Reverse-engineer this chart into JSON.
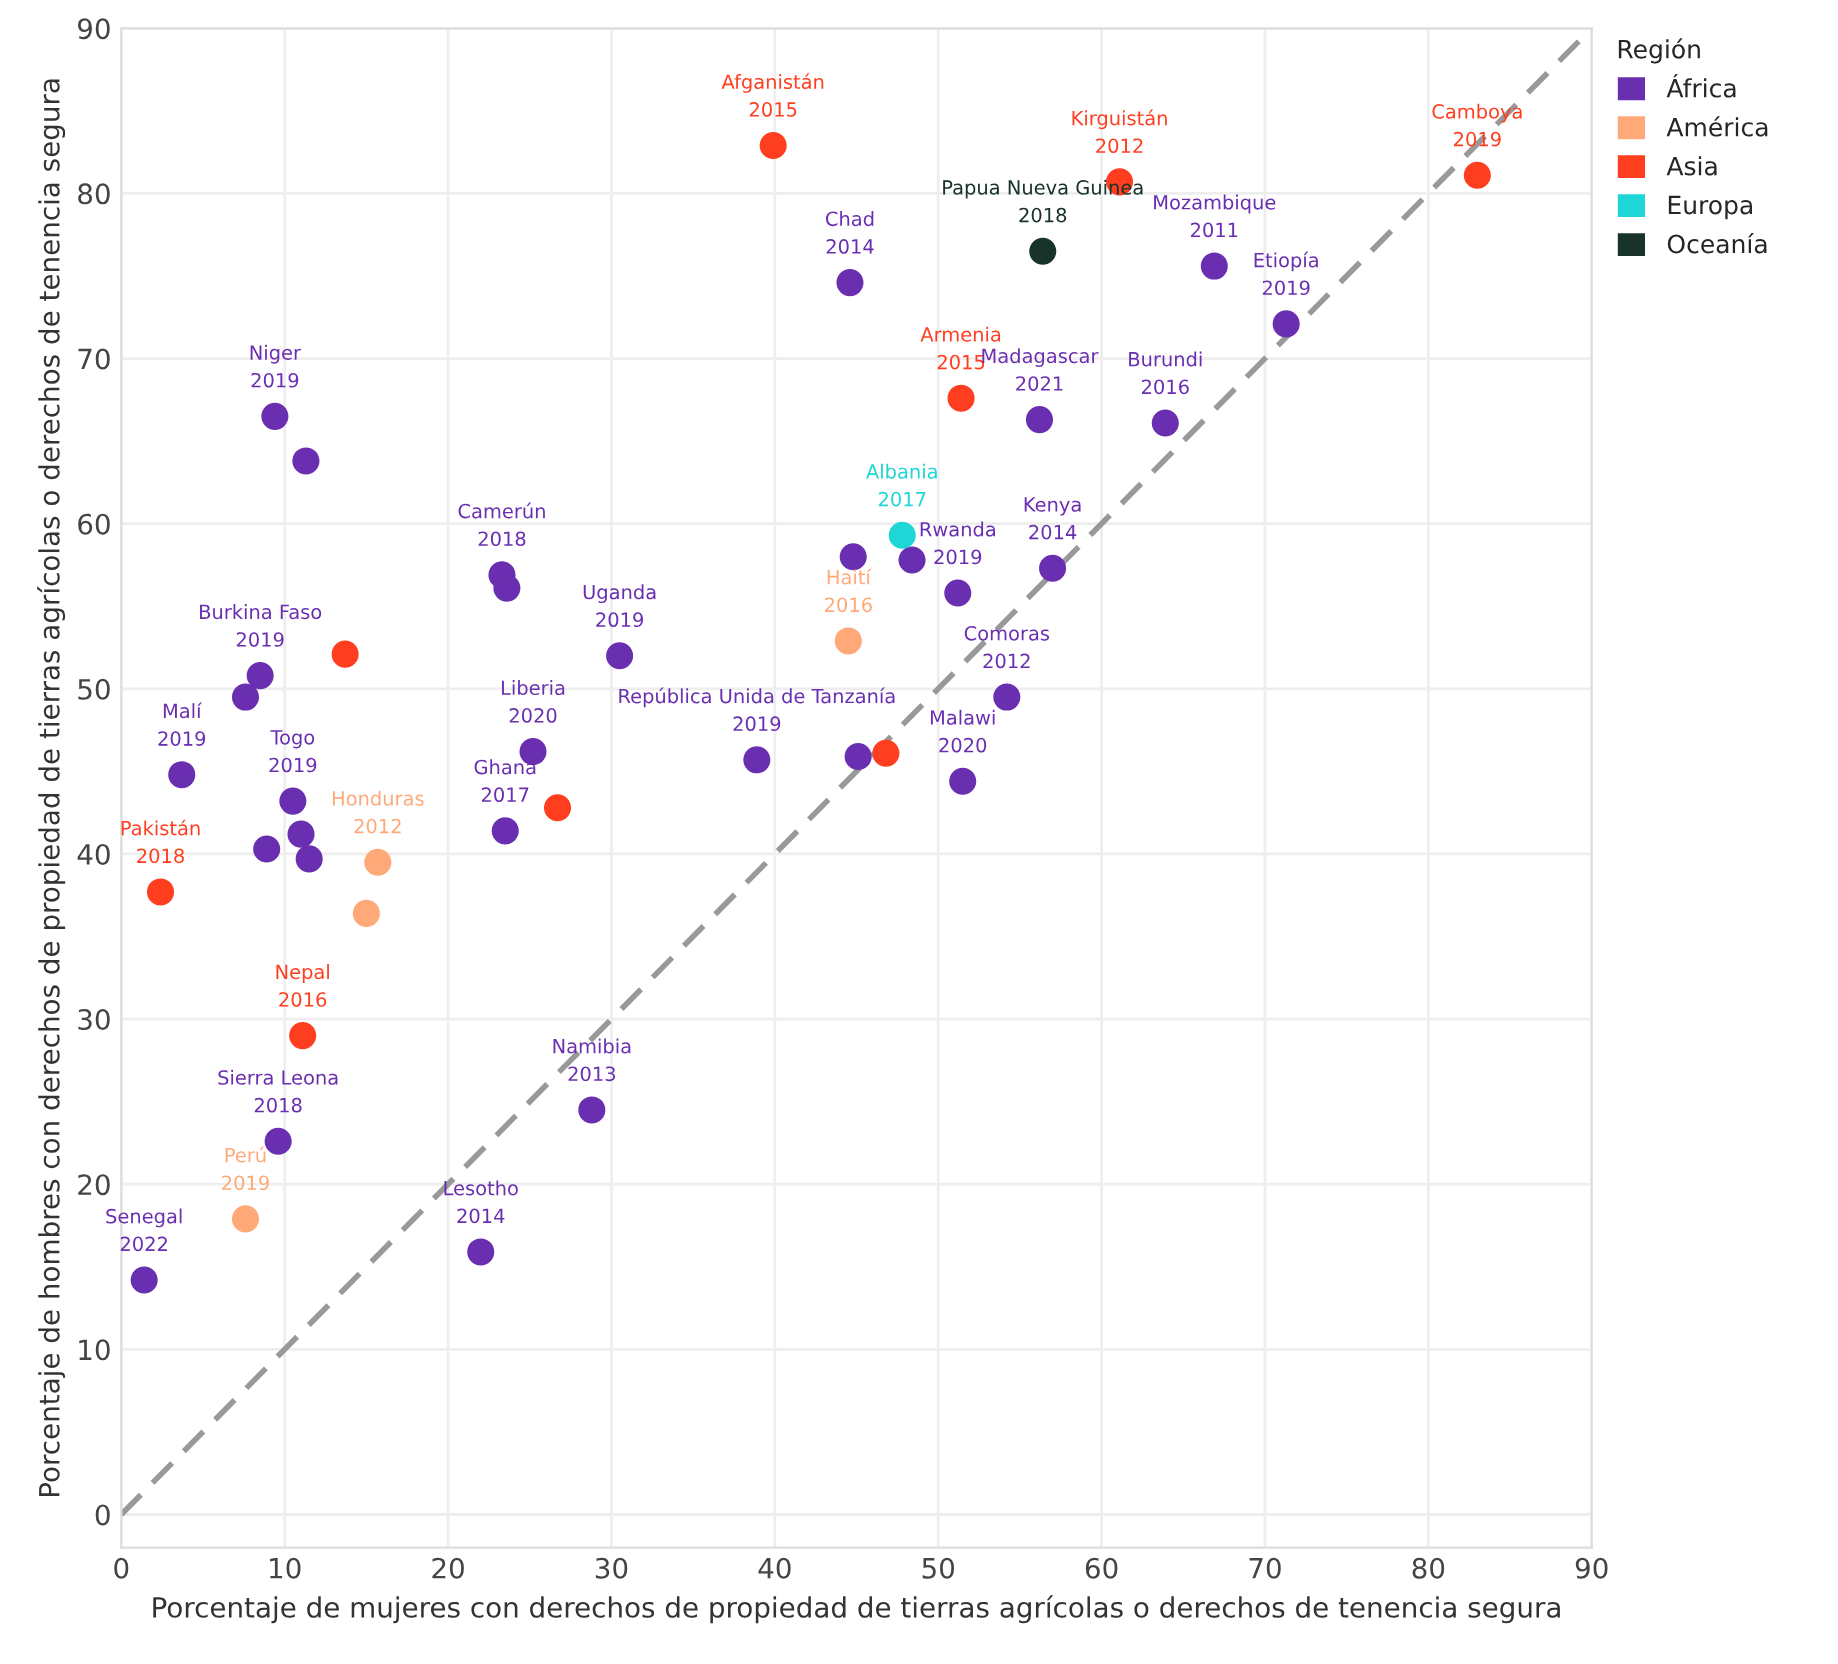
{
  "chart_data": {
    "type": "scatter",
    "xlabel": "Porcentaje de mujeres con derechos de propiedad de tierras agrícolas o derechos de tenencia segura",
    "ylabel": "Porcentaje de hombres con derechos de propiedad de tierras agrícolas o derechos de tenencia segura",
    "legend_title": "Región",
    "legend": "right",
    "grid": true,
    "marker": "circle",
    "xlim": [
      0,
      90
    ],
    "ylim": [
      -2,
      90
    ],
    "xticks": [
      0,
      10,
      20,
      30,
      40,
      50,
      60,
      70,
      80,
      90
    ],
    "yticks": [
      0,
      10,
      20,
      30,
      40,
      50,
      60,
      70,
      80,
      90
    ],
    "series": [
      {
        "name": "África",
        "color": "#6a2fb0",
        "x": [
          44.6,
          9.4,
          11.3,
          23.3,
          23.6,
          44.8,
          48.4,
          30.5,
          8.5,
          7.6,
          3.7,
          25.2,
          38.9,
          45.1,
          10.5,
          11.0,
          8.9,
          11.5,
          23.5,
          28.8,
          9.6,
          1.4,
          22.0,
          66.9,
          71.3,
          56.2,
          63.9,
          51.2,
          57.0,
          54.2,
          51.5
        ],
        "values": [
          74.6,
          66.5,
          63.8,
          56.9,
          56.1,
          58.0,
          57.8,
          52.0,
          50.8,
          49.5,
          44.8,
          46.2,
          45.7,
          45.9,
          43.2,
          41.2,
          40.3,
          39.7,
          41.4,
          24.5,
          22.6,
          14.2,
          15.9,
          75.6,
          72.1,
          66.3,
          66.1,
          55.8,
          57.3,
          49.5,
          44.4
        ]
      },
      {
        "name": "América",
        "color": "#ffa878",
        "x": [
          44.5,
          15.7,
          15.0,
          7.6
        ],
        "values": [
          52.9,
          39.5,
          36.4,
          17.9
        ]
      },
      {
        "name": "Asia",
        "color": "#ff3d1f",
        "x": [
          39.9,
          13.7,
          46.8,
          26.7,
          2.4,
          11.1,
          61.1,
          83.0,
          51.4
        ],
        "values": [
          82.9,
          52.1,
          46.1,
          42.8,
          37.7,
          29.0,
          80.7,
          81.1,
          67.6
        ]
      },
      {
        "name": "Europa",
        "color": "#1ed6d6",
        "x": [
          47.8
        ],
        "values": [
          59.3
        ]
      },
      {
        "name": "Oceanía",
        "color": "#17332a",
        "x": [
          56.4
        ],
        "values": [
          76.5
        ]
      },
      {
        "type": "line",
        "color": "#999999",
        "line_style": "dashed",
        "marker": "none",
        "x": [
          0,
          90
        ],
        "values": [
          0,
          90
        ]
      }
    ],
    "annotations": [
      {
        "text": "Afganistán\n2015",
        "x": 39.9,
        "y": 82.9
      },
      {
        "text": "Chad\n2014",
        "x": 44.6,
        "y": 74.6
      },
      {
        "text": "Niger\n2019",
        "x": 9.4,
        "y": 66.5
      },
      {
        "text": "Camerún\n2018",
        "x": 23.3,
        "y": 56.9
      },
      {
        "text": "Albania\n2017",
        "x": 47.8,
        "y": 59.3
      },
      {
        "text": "Haití\n2016",
        "x": 44.5,
        "y": 52.9
      },
      {
        "text": "Uganda\n2019",
        "x": 30.5,
        "y": 52.0
      },
      {
        "text": "Burkina Faso\n2019",
        "x": 8.5,
        "y": 50.8
      },
      {
        "text": "Malí\n2019",
        "x": 3.7,
        "y": 44.8
      },
      {
        "text": "Liberia\n2020",
        "x": 25.2,
        "y": 46.2
      },
      {
        "text": "República Unida de Tanzanía\n2019",
        "x": 38.9,
        "y": 45.7
      },
      {
        "text": "Togo\n2019",
        "x": 10.5,
        "y": 43.2
      },
      {
        "text": "Ghana\n2017",
        "x": 23.5,
        "y": 41.4
      },
      {
        "text": "Honduras\n2012",
        "x": 15.7,
        "y": 39.5
      },
      {
        "text": "Pakistán\n2018",
        "x": 2.4,
        "y": 37.7
      },
      {
        "text": "Nepal\n2016",
        "x": 11.1,
        "y": 29.0
      },
      {
        "text": "Namibia\n2013",
        "x": 28.8,
        "y": 24.5
      },
      {
        "text": "Sierra Leona\n2018",
        "x": 9.6,
        "y": 22.6
      },
      {
        "text": "Perú\n2019",
        "x": 7.6,
        "y": 17.9
      },
      {
        "text": "Senegal\n2022",
        "x": 1.4,
        "y": 14.2
      },
      {
        "text": "Lesotho\n2014",
        "x": 22.0,
        "y": 15.9
      },
      {
        "text": "Kirguistán\n2012",
        "x": 61.1,
        "y": 80.7
      },
      {
        "text": "Camboya\n2019",
        "x": 83.0,
        "y": 81.1
      },
      {
        "text": "Papua Nueva Guinea\n2018",
        "x": 56.4,
        "y": 76.5
      },
      {
        "text": "Mozambique\n2011",
        "x": 66.9,
        "y": 75.6
      },
      {
        "text": "Etiopía\n2019",
        "x": 71.3,
        "y": 72.1
      },
      {
        "text": "Armenia\n2015",
        "x": 51.4,
        "y": 67.6
      },
      {
        "text": "Madagascar\n2021",
        "x": 56.2,
        "y": 66.3
      },
      {
        "text": "Burundi\n2016",
        "x": 63.9,
        "y": 66.1
      },
      {
        "text": "Rwanda\n2019",
        "x": 51.2,
        "y": 55.8
      },
      {
        "text": "Kenya\n2014",
        "x": 57.0,
        "y": 57.3
      },
      {
        "text": "Comoras\n2012",
        "x": 54.2,
        "y": 49.5
      },
      {
        "text": "Malawi\n2020",
        "x": 51.5,
        "y": 44.4
      }
    ]
  }
}
